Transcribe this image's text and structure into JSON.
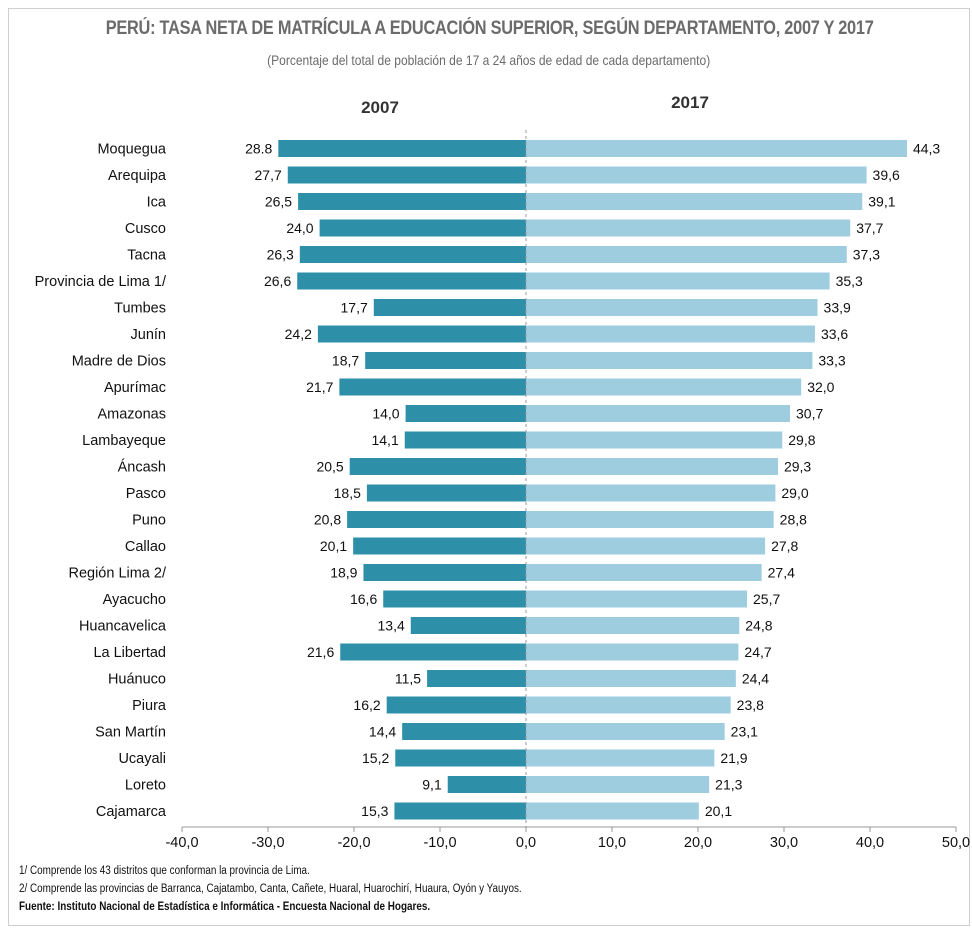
{
  "title": "PERÚ: TASA NETA DE MATRÍCULA A EDUCACIÓN SUPERIOR, SEGÚN DEPARTAMENTO, 2007 Y 2017",
  "subtitle": "(Porcentaje del total de población de 17 a 24 años de edad de cada departamento)",
  "footnotes": {
    "note1": "1/ Comprende los 43 distritos que conforman la provincia de Lima.",
    "note2": "2/ Comprende las provincias de Barranca, Cajatambo, Canta, Cañete, Huaral, Huarochirí, Huaura, Oyón y Yauyos.",
    "source": "Fuente: Instituto Nacional de Estadística e Informática - Encuesta Nacional  de Hogares."
  },
  "colors": {
    "series_2007": "#2e8fa8",
    "series_2017": "#9fcde0",
    "title": "#6b6b6b",
    "axis": "#999999"
  },
  "chart_data": {
    "type": "bar",
    "orientation": "horizontal-diverging",
    "categories": [
      "Moquegua",
      "Arequipa",
      "Ica",
      "Cusco",
      "Tacna",
      "Provincia de Lima 1/",
      "Tumbes",
      "Junín",
      "Madre de Dios",
      "Apurímac",
      "Amazonas",
      "Lambayeque",
      "Áncash",
      "Pasco",
      "Puno",
      "Callao",
      "Región Lima 2/",
      "Ayacucho",
      "Huancavelica",
      "La Libertad",
      "Huánuco",
      "Piura",
      "San Martín",
      "Ucayali",
      "Loreto",
      "Cajamarca"
    ],
    "series": [
      {
        "name": "2007",
        "values": [
          28.8,
          27.7,
          26.5,
          24.0,
          26.3,
          26.6,
          17.7,
          24.2,
          18.7,
          21.7,
          14.0,
          14.1,
          20.5,
          18.5,
          20.8,
          20.1,
          18.9,
          16.6,
          13.4,
          21.6,
          11.5,
          16.2,
          14.4,
          15.2,
          9.1,
          15.3
        ],
        "labels": [
          "28.8",
          "27,7",
          "26,5",
          "24,0",
          "26,3",
          "26,6",
          "17,7",
          "24,2",
          "18,7",
          "21,7",
          "14,0",
          "14,1",
          "20,5",
          "18,5",
          "20,8",
          "20,1",
          "18,9",
          "16,6",
          "13,4",
          "21,6",
          "11,5",
          "16,2",
          "14,4",
          "15,2",
          "9,1",
          "15,3"
        ]
      },
      {
        "name": "2017",
        "values": [
          44.3,
          39.6,
          39.1,
          37.7,
          37.3,
          35.3,
          33.9,
          33.6,
          33.3,
          32.0,
          30.7,
          29.8,
          29.3,
          29.0,
          28.8,
          27.8,
          27.4,
          25.7,
          24.8,
          24.7,
          24.4,
          23.8,
          23.1,
          21.9,
          21.3,
          20.1
        ],
        "labels": [
          "44,3",
          "39,6",
          "39,1",
          "37,7",
          "37,3",
          "35,3",
          "33,9",
          "33,6",
          "33,3",
          "32,0",
          "30,7",
          "29,8",
          "29,3",
          "29,0",
          "28,8",
          "27,8",
          "27,4",
          "25,7",
          "24,8",
          "24,7",
          "24,4",
          "23,8",
          "23,1",
          "21,9",
          "21,3",
          "20,1"
        ]
      }
    ],
    "xlim": [
      -40,
      50
    ],
    "xticks": [
      -40,
      -30,
      -20,
      -10,
      0,
      10,
      20,
      30,
      40,
      50
    ],
    "xtick_labels": [
      "-40,0",
      "-30,0",
      "-20,0",
      "-10,0",
      "0,0",
      "10,0",
      "20,0",
      "30,0",
      "40,0",
      "50,0"
    ],
    "grid": false
  }
}
